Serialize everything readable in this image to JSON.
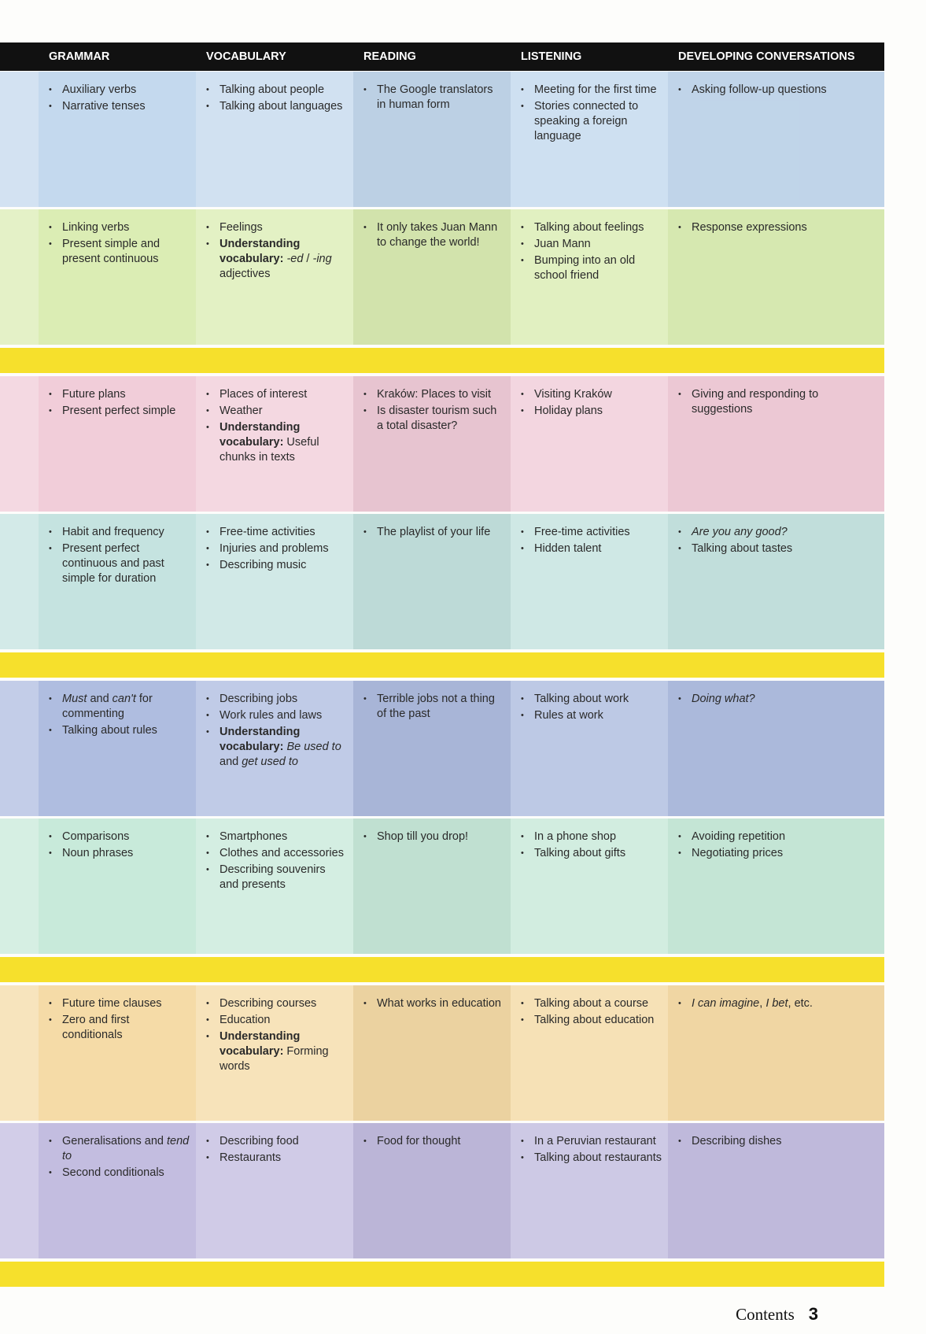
{
  "colors": {
    "header": "#111111",
    "band": "#f6e02c"
  },
  "headers": [
    "GRAMMAR",
    "VOCABULARY",
    "READING",
    "LISTENING",
    "DEVELOPING CONVERSATIONS"
  ],
  "rows": [
    {
      "color": "#c4d9ee",
      "cells": [
        [
          [
            {
              "t": "Auxiliary verbs"
            }
          ],
          [
            {
              "t": "Narrative tenses"
            }
          ]
        ],
        [
          [
            {
              "t": "Talking about people"
            }
          ],
          [
            {
              "t": "Talking about languages"
            }
          ]
        ],
        [
          [
            {
              "t": "The Google translators in human form"
            }
          ]
        ],
        [
          [
            {
              "t": "Meeting for the first time"
            }
          ],
          [
            {
              "t": "Stories connected to speaking a foreign language"
            }
          ]
        ],
        [
          [
            {
              "t": "Asking follow-up questions"
            }
          ]
        ]
      ]
    },
    {
      "color": "#dbedb4",
      "band_after": true,
      "cells": [
        [
          [
            {
              "t": "Linking verbs"
            }
          ],
          [
            {
              "t": "Present simple and present continuous"
            }
          ]
        ],
        [
          [
            {
              "t": "Feelings"
            }
          ],
          [
            {
              "t": "Understanding vocabulary:",
              "f": "b"
            },
            {
              "t": " "
            },
            {
              "t": "-ed",
              "f": "i"
            },
            {
              "t": " / "
            },
            {
              "t": "-ing",
              "f": "i"
            },
            {
              "t": " adjectives"
            }
          ]
        ],
        [
          [
            {
              "t": "It only takes Juan Mann to change the world!"
            }
          ]
        ],
        [
          [
            {
              "t": "Talking about feelings"
            }
          ],
          [
            {
              "t": "Juan Mann"
            }
          ],
          [
            {
              "t": "Bumping into an old school friend"
            }
          ]
        ],
        [
          [
            {
              "t": "Response expressions"
            }
          ]
        ]
      ]
    },
    {
      "color": "#f1cdd9",
      "cells": [
        [
          [
            {
              "t": "Future plans"
            }
          ],
          [
            {
              "t": "Present perfect simple"
            }
          ]
        ],
        [
          [
            {
              "t": "Places of interest"
            }
          ],
          [
            {
              "t": "Weather"
            }
          ],
          [
            {
              "t": "Understanding vocabulary:",
              "f": "b"
            },
            {
              "t": " Useful chunks in texts"
            }
          ]
        ],
        [
          [
            {
              "t": "Kraków: Places to visit"
            }
          ],
          [
            {
              "t": "Is disaster tourism such a total disaster?"
            }
          ]
        ],
        [
          [
            {
              "t": "Visiting Kraków"
            }
          ],
          [
            {
              "t": "Holiday plans"
            }
          ]
        ],
        [
          [
            {
              "t": "Giving and responding to suggestions"
            }
          ]
        ]
      ]
    },
    {
      "color": "#c5e3e0",
      "band_after": true,
      "cells": [
        [
          [
            {
              "t": "Habit and frequency"
            }
          ],
          [
            {
              "t": "Present perfect continuous and past simple for duration"
            }
          ]
        ],
        [
          [
            {
              "t": "Free-time activities"
            }
          ],
          [
            {
              "t": "Injuries and problems"
            }
          ],
          [
            {
              "t": "Describing music"
            }
          ]
        ],
        [
          [
            {
              "t": "The playlist of your life"
            }
          ]
        ],
        [
          [
            {
              "t": "Free-time activities"
            }
          ],
          [
            {
              "t": "Hidden talent"
            }
          ]
        ],
        [
          [
            {
              "t": "Are you any good?",
              "f": "i"
            }
          ],
          [
            {
              "t": "Talking about tastes"
            }
          ]
        ]
      ]
    },
    {
      "color": "#afbde0",
      "cells": [
        [
          [
            {
              "t": "Must",
              "f": "i"
            },
            {
              "t": " and "
            },
            {
              "t": "can't",
              "f": "i"
            },
            {
              "t": " for commenting"
            }
          ],
          [
            {
              "t": "Talking about rules"
            }
          ]
        ],
        [
          [
            {
              "t": "Describing jobs"
            }
          ],
          [
            {
              "t": "Work rules and laws"
            }
          ],
          [
            {
              "t": "Understanding vocabulary:",
              "f": "b"
            },
            {
              "t": " "
            },
            {
              "t": "Be used to",
              "f": "i"
            },
            {
              "t": " and "
            },
            {
              "t": "get used to",
              "f": "i"
            }
          ]
        ],
        [
          [
            {
              "t": "Terrible jobs not a thing of the past"
            }
          ]
        ],
        [
          [
            {
              "t": "Talking about work"
            }
          ],
          [
            {
              "t": "Rules at work"
            }
          ]
        ],
        [
          [
            {
              "t": "Doing what?",
              "f": "i"
            }
          ]
        ]
      ]
    },
    {
      "color": "#c8eada",
      "band_after": true,
      "cells": [
        [
          [
            {
              "t": "Comparisons"
            }
          ],
          [
            {
              "t": "Noun phrases"
            }
          ]
        ],
        [
          [
            {
              "t": "Smartphones"
            }
          ],
          [
            {
              "t": "Clothes and accessories"
            }
          ],
          [
            {
              "t": "Describing souvenirs and presents"
            }
          ]
        ],
        [
          [
            {
              "t": "Shop till you drop!"
            }
          ]
        ],
        [
          [
            {
              "t": "In a phone shop"
            }
          ],
          [
            {
              "t": "Talking about gifts"
            }
          ]
        ],
        [
          [
            {
              "t": "Avoiding repetition"
            }
          ],
          [
            {
              "t": "Negotiating prices"
            }
          ]
        ]
      ]
    },
    {
      "color": "#f5dba7",
      "cells": [
        [
          [
            {
              "t": "Future time clauses"
            }
          ],
          [
            {
              "t": "Zero and first conditionals"
            }
          ]
        ],
        [
          [
            {
              "t": "Describing courses"
            }
          ],
          [
            {
              "t": "Education"
            }
          ],
          [
            {
              "t": "Understanding vocabulary:",
              "f": "b"
            },
            {
              "t": " Forming words"
            }
          ]
        ],
        [
          [
            {
              "t": "What works in education"
            }
          ]
        ],
        [
          [
            {
              "t": "Talking about a course"
            }
          ],
          [
            {
              "t": "Talking about education"
            }
          ]
        ],
        [
          [
            {
              "t": "I can imagine",
              "f": "i"
            },
            {
              "t": ", "
            },
            {
              "t": "I bet",
              "f": "i"
            },
            {
              "t": ", etc."
            }
          ]
        ]
      ]
    },
    {
      "color": "#c3bde0",
      "band_after": true,
      "cells": [
        [
          [
            {
              "t": "Generalisations and "
            },
            {
              "t": "tend to",
              "f": "i"
            }
          ],
          [
            {
              "t": "Second conditionals"
            }
          ]
        ],
        [
          [
            {
              "t": "Describing food"
            }
          ],
          [
            {
              "t": "Restaurants"
            }
          ]
        ],
        [
          [
            {
              "t": "Food for thought"
            }
          ]
        ],
        [
          [
            {
              "t": "In a Peruvian restaurant"
            }
          ],
          [
            {
              "t": "Talking about restaurants"
            }
          ]
        ],
        [
          [
            {
              "t": "Describing dishes"
            }
          ]
        ]
      ]
    }
  ],
  "footer": {
    "label": "Contents",
    "page": "3"
  }
}
